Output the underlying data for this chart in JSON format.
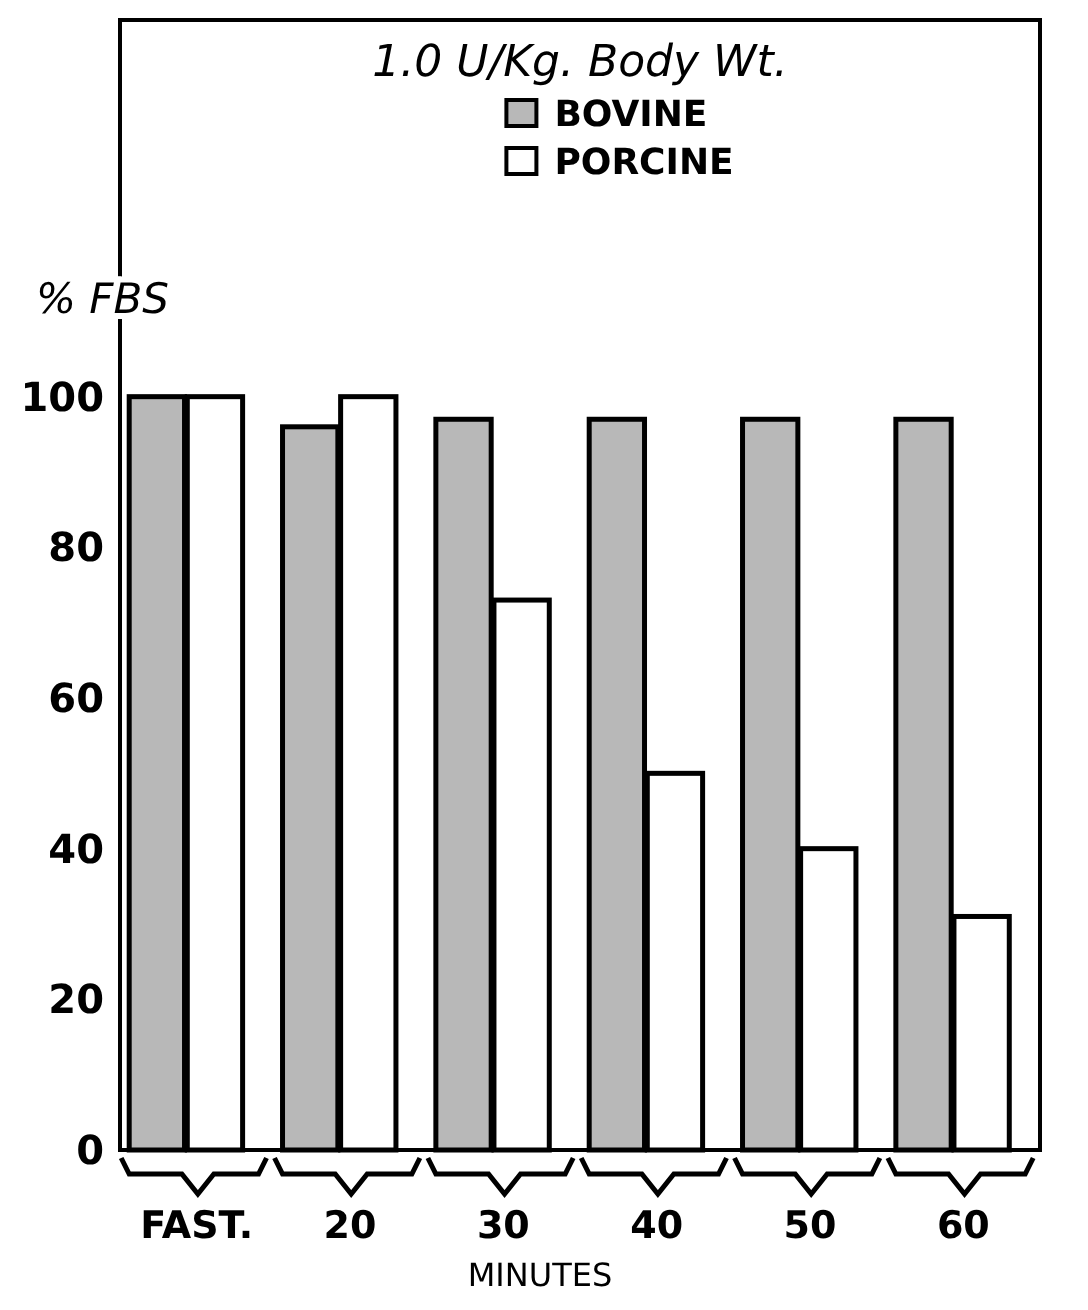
{
  "chart_data": {
    "type": "bar",
    "title": "1.0 U/Kg. Body Wt.",
    "ylabel": "% FBS",
    "xlabel": "MINUTES",
    "categories": [
      "FAST.",
      "20",
      "30",
      "40",
      "50",
      "60"
    ],
    "series": [
      {
        "name": "BOVINE",
        "color": "#b8b8b8",
        "values": [
          100,
          96,
          97,
          97,
          97,
          97
        ]
      },
      {
        "name": "PORCINE",
        "color": "#ffffff",
        "values": [
          100,
          100,
          73,
          50,
          40,
          31
        ]
      }
    ],
    "ylim": [
      0,
      150
    ],
    "yticks": [
      0,
      20,
      40,
      60,
      80,
      100
    ],
    "grid": false,
    "legend": "top"
  }
}
